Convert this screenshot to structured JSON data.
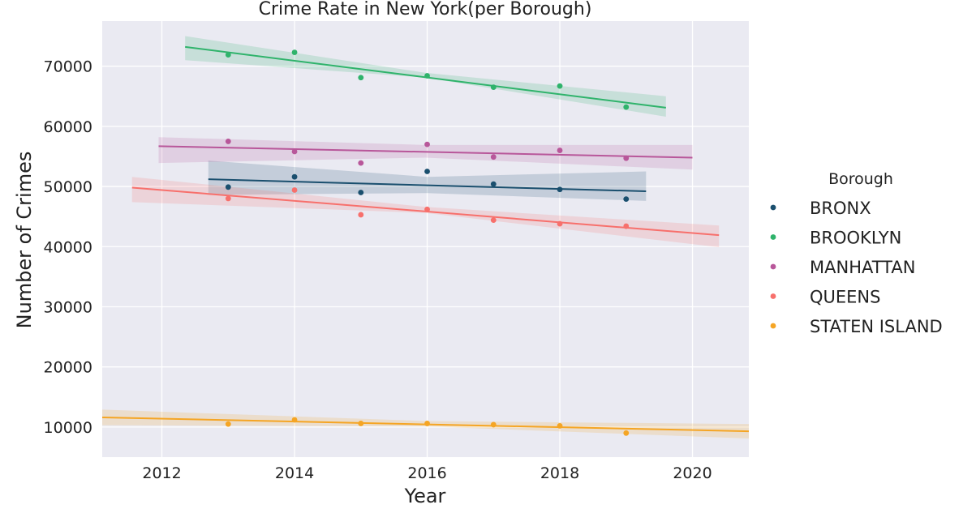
{
  "chart_data": {
    "type": "scatter",
    "title": "Crime Rate in New York(per Borough)",
    "xlabel": "Year",
    "ylabel": "Number of Crimes",
    "xlim": [
      2011.1,
      2020.85
    ],
    "ylim": [
      5000,
      77500
    ],
    "xticks": [
      2012,
      2014,
      2016,
      2018,
      2020
    ],
    "yticks": [
      10000,
      20000,
      30000,
      40000,
      50000,
      60000,
      70000
    ],
    "grid": true,
    "background": "#eaeaf2",
    "legend": {
      "title": "Borough",
      "placement": "center-right"
    },
    "x": [
      2013,
      2014,
      2015,
      2016,
      2017,
      2018,
      2019
    ],
    "series": [
      {
        "name": "BRONX",
        "color": "#1a4f6e",
        "values": [
          49900,
          51600,
          49000,
          52500,
          50400,
          49500,
          47900
        ],
        "trend": {
          "x": [
            2012.7,
            2019.3
          ],
          "y": [
            51200,
            49200
          ]
        },
        "band": {
          "upper": [
            54300,
            51600,
            52500
          ],
          "lower": [
            48600,
            48900,
            47600
          ]
        }
      },
      {
        "name": "BROOKLYN",
        "color": "#2fb36b",
        "values": [
          71900,
          72300,
          68100,
          68400,
          66500,
          66700,
          63200
        ],
        "trend": {
          "x": [
            2012.35,
            2019.6
          ],
          "y": [
            73200,
            63100
          ]
        },
        "band": {
          "upper": [
            75000,
            68900,
            65000
          ],
          "lower": [
            71000,
            68100,
            61600
          ]
        }
      },
      {
        "name": "MANHATTAN",
        "color": "#b8579a",
        "values": [
          57500,
          55800,
          53900,
          57000,
          54900,
          56000,
          54700
        ],
        "trend": {
          "x": [
            2011.95,
            2020
          ],
          "y": [
            56700,
            54800
          ]
        },
        "band": {
          "upper": [
            58200,
            56900,
            56900
          ],
          "lower": [
            53900,
            54800,
            52800
          ]
        }
      },
      {
        "name": "QUEENS",
        "color": "#f7706c",
        "values": [
          48000,
          49400,
          45300,
          46200,
          44400,
          43800,
          43400
        ],
        "trend": {
          "x": [
            2011.55,
            2020.4
          ],
          "y": [
            49800,
            41900
          ]
        },
        "band": {
          "upper": [
            51600,
            46600,
            43500
          ],
          "lower": [
            47400,
            45600,
            39900
          ]
        }
      },
      {
        "name": "STATEN ISLAND",
        "color": "#f5a524",
        "values": [
          10500,
          11200,
          10600,
          10600,
          10400,
          10200,
          9000
        ],
        "trend": {
          "x": [
            2011.1,
            2020.85
          ],
          "y": [
            11600,
            9300
          ]
        },
        "band": {
          "upper": [
            12900,
            11000,
            10500
          ],
          "lower": [
            10300,
            10100,
            8100
          ]
        }
      }
    ]
  }
}
